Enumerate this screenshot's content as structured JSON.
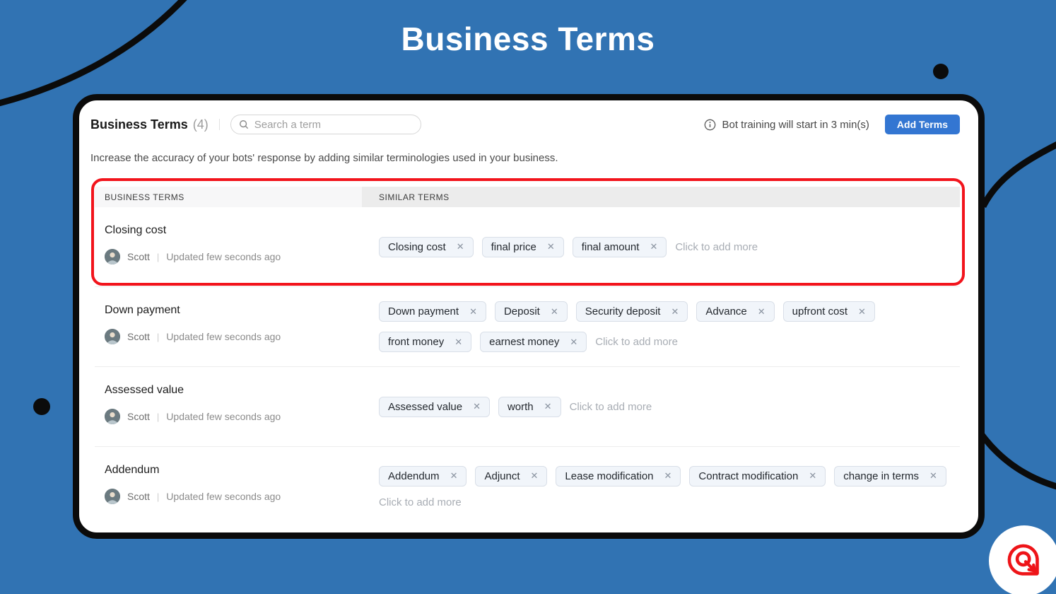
{
  "page": {
    "title": "Business Terms"
  },
  "colors": {
    "background": "#3173b3",
    "accent_button": "#3376d2",
    "highlight_ring": "#f2141c",
    "tag_background": "#f1f5fa"
  },
  "card": {
    "header": {
      "title": "Business Terms",
      "count": "(4)",
      "search_placeholder": "Search a term",
      "training_note": "Bot training will start in 3 min(s)",
      "add_button": "Add Terms"
    },
    "description": "Increase the accuracy of your bots' response by adding similar terminologies used in your business.",
    "columns": [
      "BUSINESS TERMS",
      "SIMILAR TERMS"
    ],
    "add_more_label": "Click to add more",
    "meta_separator": "|",
    "rows": [
      {
        "term": "Closing cost",
        "author": "Scott",
        "updated": "Updated few seconds ago",
        "highlighted": true,
        "similar": [
          "Closing cost",
          "final price",
          "final amount"
        ]
      },
      {
        "term": "Down payment",
        "author": "Scott",
        "updated": "Updated few seconds ago",
        "highlighted": false,
        "similar": [
          "Down payment",
          "Deposit",
          "Security deposit",
          "Advance",
          "upfront cost",
          "front money",
          "earnest money"
        ]
      },
      {
        "term": "Assessed value",
        "author": "Scott",
        "updated": "Updated few seconds ago",
        "highlighted": false,
        "similar": [
          "Assessed value",
          "worth"
        ]
      },
      {
        "term": "Addendum",
        "author": "Scott",
        "updated": "Updated few seconds ago",
        "highlighted": false,
        "similar": [
          "Addendum",
          "Adjunct",
          "Lease modification",
          "Contract modification",
          "change in terms"
        ]
      }
    ]
  },
  "icons": {
    "search": "search-icon",
    "info": "info-icon",
    "close": "close-icon",
    "brand": "brand-logo"
  }
}
